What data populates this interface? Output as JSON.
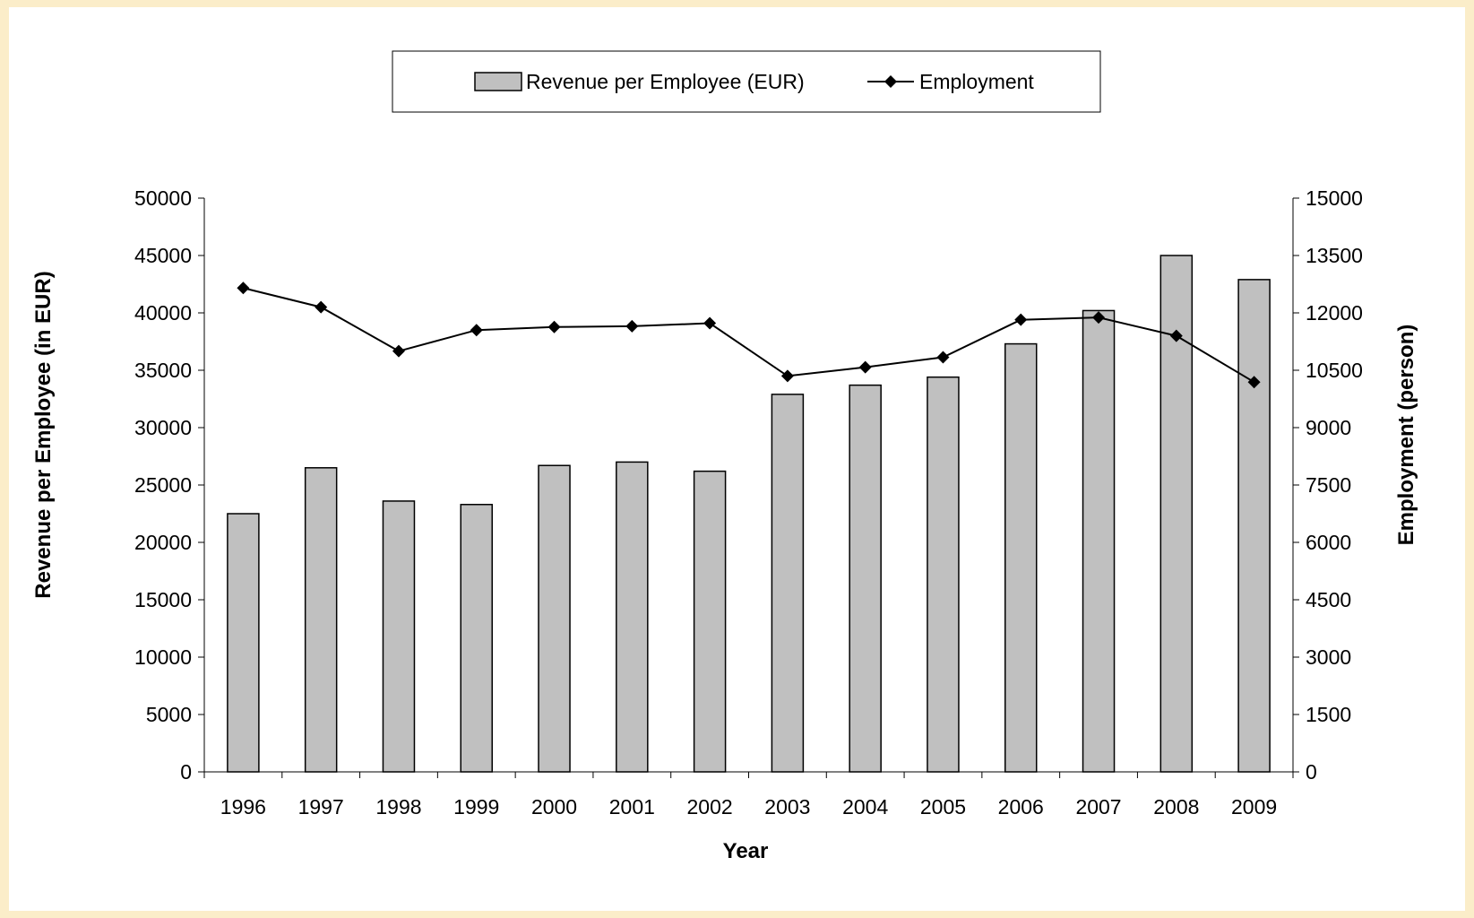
{
  "chart_data": {
    "type": "bar",
    "categories": [
      "1996",
      "1997",
      "1998",
      "1999",
      "2000",
      "2001",
      "2002",
      "2003",
      "2004",
      "2005",
      "2006",
      "2007",
      "2008",
      "2009"
    ],
    "series": [
      {
        "name": "Revenue per Employee (EUR)",
        "type": "bar",
        "axis": "left",
        "values": [
          22500,
          26500,
          23600,
          23300,
          26700,
          27000,
          26200,
          32900,
          33700,
          34400,
          37300,
          40200,
          45000,
          42900
        ]
      },
      {
        "name": "Employment",
        "type": "line",
        "axis": "right",
        "marker": "diamond",
        "values": [
          12650,
          12150,
          11000,
          11550,
          11630,
          11650,
          11730,
          10350,
          10580,
          10840,
          11820,
          11880,
          11400,
          10190
        ]
      }
    ],
    "xlabel": "Year",
    "ylabel": "Revenue per Employee (in EUR)",
    "y2label": "Employment (person)",
    "ylim": [
      0,
      50000
    ],
    "y2lim": [
      0,
      15000
    ],
    "yticks": [
      "0",
      "5000",
      "10000",
      "15000",
      "20000",
      "25000",
      "30000",
      "35000",
      "40000",
      "45000",
      "50000"
    ],
    "y2ticks": [
      "0",
      "1500",
      "3000",
      "4500",
      "6000",
      "7500",
      "9000",
      "10500",
      "12000",
      "13500",
      "15000"
    ],
    "grid": false,
    "legend_position": "top",
    "colors": {
      "bar": "#c0c0c0",
      "line": "#000000",
      "page_border": "#fbedc9"
    }
  }
}
